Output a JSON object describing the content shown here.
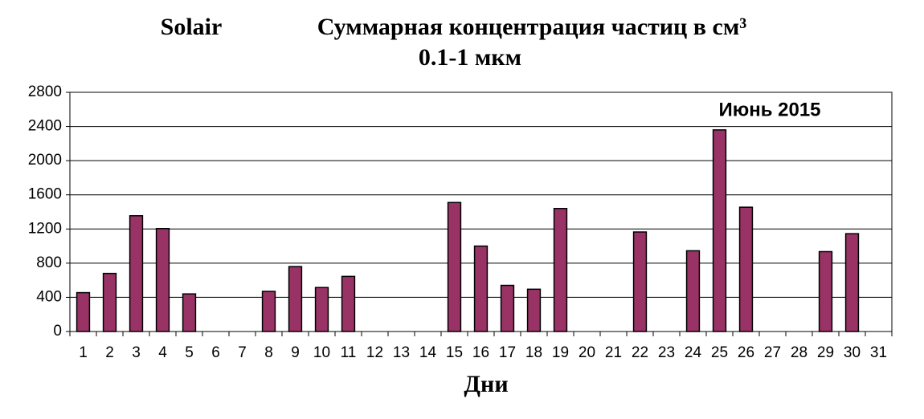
{
  "chart_data": {
    "type": "bar",
    "title": "Solair",
    "subtitle": "Суммарная концентрация частиц  в см³",
    "subtitle2": "0.1-1 мкм",
    "annotation": "Июнь  2015",
    "x_label": "Дни",
    "categories": [
      "1",
      "2",
      "3",
      "4",
      "5",
      "6",
      "7",
      "8",
      "9",
      "10",
      "11",
      "12",
      "13",
      "14",
      "15",
      "16",
      "17",
      "18",
      "19",
      "20",
      "21",
      "22",
      "23",
      "24",
      "25",
      "26",
      "27",
      "28",
      "29",
      "30",
      "31"
    ],
    "values": [
      455,
      680,
      1355,
      1205,
      440,
      null,
      null,
      470,
      760,
      515,
      645,
      null,
      null,
      null,
      1510,
      1000,
      540,
      495,
      1440,
      null,
      null,
      1165,
      null,
      945,
      2360,
      1455,
      null,
      null,
      935,
      1145,
      null
    ],
    "color": "#993366",
    "ylim": [
      0,
      2800
    ],
    "yticks": [
      0,
      400,
      800,
      1200,
      1600,
      2000,
      2400,
      2800
    ],
    "grid": true
  }
}
